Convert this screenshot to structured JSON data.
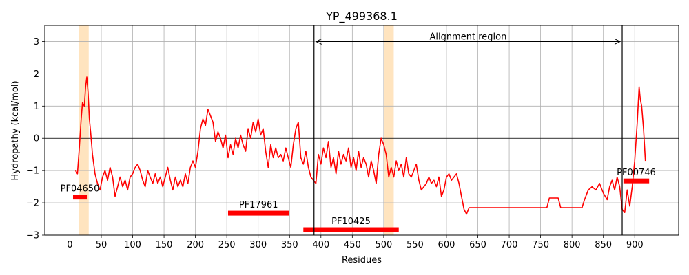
{
  "chart_data": {
    "type": "line",
    "title": "YP_499368.1",
    "xlabel": "Residues",
    "ylabel": "Hydropathy (kcal/mol)",
    "xlim": [
      -40,
      970
    ],
    "ylim": [
      -3,
      3.5
    ],
    "xticks": [
      0,
      50,
      100,
      150,
      200,
      250,
      300,
      350,
      400,
      450,
      500,
      550,
      600,
      650,
      700,
      750,
      800,
      850,
      900
    ],
    "yticks": [
      -3,
      -2,
      -1,
      0,
      1,
      2,
      3
    ],
    "grid": true,
    "colors": {
      "line": "#ff0000",
      "domain": "#ff0000",
      "highlight": "#ffe4bf",
      "frame": "#000000",
      "grid": "#b0b0b0"
    },
    "series": [
      {
        "values": [
          [
            9,
            -1.0
          ],
          [
            12,
            -1.1
          ],
          [
            15,
            -0.3
          ],
          [
            18,
            0.6
          ],
          [
            20,
            1.1
          ],
          [
            23,
            1.0
          ],
          [
            25,
            1.6
          ],
          [
            27,
            1.9
          ],
          [
            29,
            1.4
          ],
          [
            31,
            0.6
          ],
          [
            33,
            0.2
          ],
          [
            36,
            -0.5
          ],
          [
            40,
            -1.1
          ],
          [
            44,
            -1.4
          ],
          [
            48,
            -1.6
          ],
          [
            52,
            -1.2
          ],
          [
            56,
            -1.0
          ],
          [
            60,
            -1.3
          ],
          [
            64,
            -0.9
          ],
          [
            68,
            -1.2
          ],
          [
            72,
            -1.8
          ],
          [
            76,
            -1.5
          ],
          [
            80,
            -1.2
          ],
          [
            84,
            -1.5
          ],
          [
            88,
            -1.3
          ],
          [
            92,
            -1.6
          ],
          [
            96,
            -1.2
          ],
          [
            100,
            -1.1
          ],
          [
            104,
            -0.9
          ],
          [
            108,
            -0.8
          ],
          [
            112,
            -1.0
          ],
          [
            116,
            -1.3
          ],
          [
            120,
            -1.5
          ],
          [
            124,
            -1.0
          ],
          [
            128,
            -1.2
          ],
          [
            132,
            -1.4
          ],
          [
            136,
            -1.1
          ],
          [
            140,
            -1.4
          ],
          [
            144,
            -1.2
          ],
          [
            148,
            -1.5
          ],
          [
            152,
            -1.2
          ],
          [
            156,
            -0.9
          ],
          [
            160,
            -1.3
          ],
          [
            164,
            -1.6
          ],
          [
            168,
            -1.2
          ],
          [
            172,
            -1.5
          ],
          [
            176,
            -1.3
          ],
          [
            180,
            -1.5
          ],
          [
            184,
            -1.1
          ],
          [
            188,
            -1.4
          ],
          [
            192,
            -0.9
          ],
          [
            196,
            -0.7
          ],
          [
            200,
            -0.9
          ],
          [
            204,
            -0.4
          ],
          [
            208,
            0.3
          ],
          [
            212,
            0.6
          ],
          [
            216,
            0.4
          ],
          [
            220,
            0.9
          ],
          [
            224,
            0.7
          ],
          [
            228,
            0.5
          ],
          [
            232,
            -0.1
          ],
          [
            236,
            0.2
          ],
          [
            240,
            0.0
          ],
          [
            244,
            -0.3
          ],
          [
            248,
            0.1
          ],
          [
            252,
            -0.6
          ],
          [
            256,
            -0.2
          ],
          [
            260,
            -0.5
          ],
          [
            264,
            0.0
          ],
          [
            268,
            -0.3
          ],
          [
            272,
            0.1
          ],
          [
            276,
            -0.2
          ],
          [
            280,
            -0.4
          ],
          [
            284,
            0.3
          ],
          [
            288,
            0.0
          ],
          [
            292,
            0.5
          ],
          [
            296,
            0.2
          ],
          [
            300,
            0.6
          ],
          [
            304,
            0.1
          ],
          [
            308,
            0.3
          ],
          [
            312,
            -0.4
          ],
          [
            316,
            -0.9
          ],
          [
            320,
            -0.2
          ],
          [
            324,
            -0.6
          ],
          [
            328,
            -0.3
          ],
          [
            332,
            -0.6
          ],
          [
            336,
            -0.5
          ],
          [
            340,
            -0.7
          ],
          [
            344,
            -0.3
          ],
          [
            348,
            -0.6
          ],
          [
            352,
            -0.9
          ],
          [
            356,
            -0.2
          ],
          [
            360,
            0.3
          ],
          [
            364,
            0.5
          ],
          [
            368,
            -0.6
          ],
          [
            372,
            -0.8
          ],
          [
            376,
            -0.4
          ],
          [
            380,
            -0.9
          ],
          [
            384,
            -1.2
          ],
          [
            388,
            -1.3
          ],
          [
            392,
            -1.4
          ],
          [
            396,
            -0.5
          ],
          [
            400,
            -0.8
          ],
          [
            404,
            -0.3
          ],
          [
            408,
            -0.6
          ],
          [
            412,
            -0.1
          ],
          [
            416,
            -0.9
          ],
          [
            420,
            -0.6
          ],
          [
            424,
            -1.1
          ],
          [
            428,
            -0.4
          ],
          [
            432,
            -0.8
          ],
          [
            436,
            -0.5
          ],
          [
            440,
            -0.7
          ],
          [
            444,
            -0.3
          ],
          [
            448,
            -0.9
          ],
          [
            452,
            -0.6
          ],
          [
            456,
            -1.0
          ],
          [
            460,
            -0.4
          ],
          [
            464,
            -0.9
          ],
          [
            468,
            -0.6
          ],
          [
            472,
            -0.8
          ],
          [
            476,
            -1.2
          ],
          [
            480,
            -0.7
          ],
          [
            484,
            -1.0
          ],
          [
            488,
            -1.4
          ],
          [
            492,
            -0.5
          ],
          [
            496,
            0.0
          ],
          [
            500,
            -0.2
          ],
          [
            504,
            -0.5
          ],
          [
            508,
            -1.2
          ],
          [
            512,
            -0.9
          ],
          [
            516,
            -1.2
          ],
          [
            520,
            -0.7
          ],
          [
            524,
            -1.0
          ],
          [
            528,
            -0.8
          ],
          [
            532,
            -1.2
          ],
          [
            536,
            -0.6
          ],
          [
            540,
            -1.1
          ],
          [
            544,
            -1.2
          ],
          [
            548,
            -1.0
          ],
          [
            552,
            -0.8
          ],
          [
            556,
            -1.3
          ],
          [
            560,
            -1.6
          ],
          [
            564,
            -1.5
          ],
          [
            568,
            -1.4
          ],
          [
            572,
            -1.2
          ],
          [
            576,
            -1.4
          ],
          [
            580,
            -1.3
          ],
          [
            584,
            -1.5
          ],
          [
            588,
            -1.2
          ],
          [
            592,
            -1.8
          ],
          [
            596,
            -1.6
          ],
          [
            600,
            -1.2
          ],
          [
            604,
            -1.1
          ],
          [
            608,
            -1.3
          ],
          [
            612,
            -1.2
          ],
          [
            616,
            -1.1
          ],
          [
            620,
            -1.4
          ],
          [
            624,
            -1.8
          ],
          [
            628,
            -2.2
          ],
          [
            632,
            -2.35
          ],
          [
            636,
            -2.15
          ],
          [
            640,
            -2.15
          ],
          [
            760,
            -2.15
          ],
          [
            764,
            -1.85
          ],
          [
            778,
            -1.85
          ],
          [
            782,
            -2.15
          ],
          [
            816,
            -2.15
          ],
          [
            820,
            -1.9
          ],
          [
            826,
            -1.6
          ],
          [
            832,
            -1.5
          ],
          [
            838,
            -1.6
          ],
          [
            844,
            -1.4
          ],
          [
            850,
            -1.7
          ],
          [
            856,
            -1.9
          ],
          [
            860,
            -1.5
          ],
          [
            864,
            -1.3
          ],
          [
            868,
            -1.6
          ],
          [
            872,
            -1.2
          ],
          [
            876,
            -1.5
          ],
          [
            880,
            -2.2
          ],
          [
            884,
            -2.3
          ],
          [
            888,
            -1.6
          ],
          [
            892,
            -2.1
          ],
          [
            896,
            -1.5
          ],
          [
            900,
            -0.7
          ],
          [
            904,
            0.5
          ],
          [
            907,
            1.6
          ],
          [
            909,
            1.2
          ],
          [
            911,
            1.0
          ],
          [
            914,
            0.3
          ],
          [
            917,
            -0.7
          ]
        ]
      }
    ],
    "highlights": [
      [
        14,
        30
      ],
      [
        500,
        516
      ]
    ],
    "vlines": [
      389,
      880
    ],
    "alignment_region": {
      "label": "Alignment region",
      "x_start": 389,
      "x_end": 880,
      "y": 3.0
    },
    "domains": [
      {
        "label": "PF04650",
        "x_start": 5,
        "x_end": 27,
        "y": -1.82
      },
      {
        "label": "PF17961",
        "x_start": 252,
        "x_end": 349,
        "y": -2.32
      },
      {
        "label": "PF10425",
        "x_start": 372,
        "x_end": 524,
        "y": -2.83
      },
      {
        "label": "PF00746",
        "x_start": 882,
        "x_end": 923,
        "y": -1.32
      }
    ]
  }
}
